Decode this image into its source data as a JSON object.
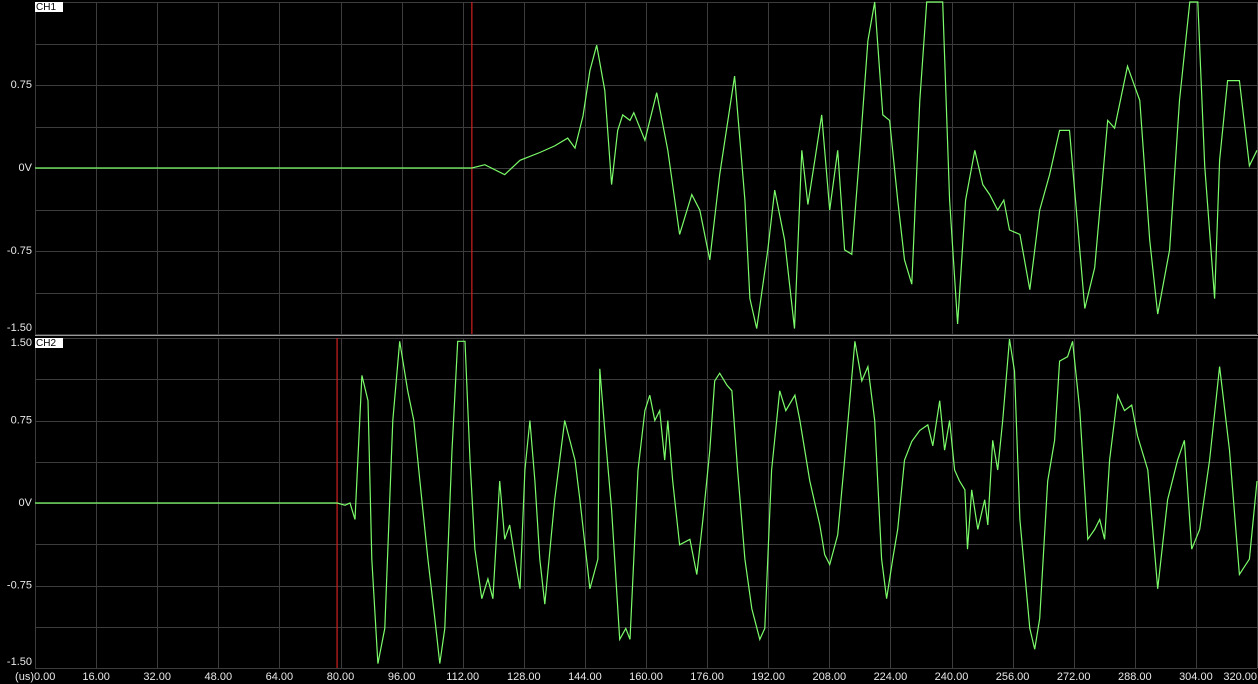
{
  "chart_data": [
    {
      "type": "line",
      "title": "CH1",
      "color": "#7CFC6A",
      "cursor": 114.4,
      "cursor_color": "#d02020",
      "xlim": [
        0,
        320
      ],
      "ylim": [
        -1.5,
        1.5
      ],
      "yticks": [
        0.75,
        {
          "value": 0,
          "label": "0V"
        },
        -0.75,
        {
          "value": -1.5,
          "label": "-1.50"
        }
      ],
      "ygrid": [
        -1.5,
        -1.125,
        -0.75,
        -0.375,
        0,
        0.375,
        0.75,
        1.125,
        1.5
      ],
      "x": [
        0,
        114.4,
        117.8,
        123.0,
        127.0,
        132.2,
        136.1,
        139.5,
        141.4,
        143.5,
        145.3,
        147.1,
        149.2,
        151.0,
        152.6,
        153.9,
        155.8,
        156.8,
        159.7,
        162.8,
        165.7,
        168.8,
        172.0,
        174.1,
        176.7,
        179.3,
        183.2,
        185.9,
        187.2,
        189.0,
        191.9,
        193.7,
        196.3,
        198.9,
        200.8,
        202.4,
        204.2,
        206.0,
        208.1,
        210.2,
        212.0,
        213.9,
        216.0,
        218.1,
        219.9,
        222.0,
        223.8,
        225.9,
        227.7,
        229.6,
        231.7,
        233.5,
        237.7,
        239.5,
        241.6,
        243.7,
        246.1,
        248.2,
        250.0,
        252.1,
        253.7,
        255.2,
        257.9,
        260.5,
        263.1,
        265.7,
        268.3,
        270.9,
        274.9,
        277.5,
        280.9,
        282.7,
        286.1,
        289.3,
        291.9,
        294.0,
        297.1,
        299.7,
        302.4,
        304.5,
        306.3,
        308.9,
        310.2,
        312.3,
        315.4,
        318.0,
        320.0
      ],
      "values": [
        0,
        0,
        0.03,
        -0.06,
        0.07,
        0.14,
        0.2,
        0.27,
        0.18,
        0.47,
        0.88,
        1.11,
        0.7,
        -0.15,
        0.34,
        0.48,
        0.43,
        0.5,
        0.25,
        0.68,
        0.16,
        -0.6,
        -0.24,
        -0.38,
        -0.83,
        -0.06,
        0.83,
        -0.29,
        -1.18,
        -1.45,
        -0.74,
        -0.2,
        -0.65,
        -1.45,
        0.16,
        -0.33,
        0.07,
        0.48,
        -0.38,
        0.16,
        -0.74,
        -0.78,
        0.16,
        1.15,
        1.5,
        0.48,
        0.43,
        -0.29,
        -0.83,
        -1.05,
        0.61,
        1.5,
        1.5,
        -0.29,
        -1.41,
        -0.29,
        0.16,
        -0.15,
        -0.24,
        -0.38,
        -0.29,
        -0.56,
        -0.6,
        -1.1,
        -0.38,
        -0.06,
        0.34,
        0.34,
        -1.27,
        -0.9,
        0.43,
        0.36,
        0.92,
        0.61,
        -0.65,
        -1.32,
        -0.74,
        0.61,
        1.5,
        1.5,
        0.02,
        -1.18,
        0.07,
        0.79,
        0.79,
        0.02,
        0.16
      ]
    },
    {
      "type": "line",
      "title": "CH2",
      "color": "#7CFC6A",
      "cursor": 79.1,
      "cursor_color": "#d02020",
      "xlim": [
        0,
        320
      ],
      "ylim": [
        -1.5,
        1.5
      ],
      "x_label": "(us)",
      "xticks": [
        {
          "value": 0,
          "label": "0.00"
        },
        {
          "value": 16,
          "label": "16.00"
        },
        {
          "value": 32,
          "label": "32.00"
        },
        {
          "value": 48,
          "label": "48.00"
        },
        {
          "value": 64,
          "label": "64.00"
        },
        {
          "value": 80,
          "label": "80.00"
        },
        {
          "value": 96,
          "label": "96.00"
        },
        {
          "value": 112,
          "label": "112.00"
        },
        {
          "value": 128,
          "label": "128.00"
        },
        {
          "value": 144,
          "label": "144.00"
        },
        {
          "value": 160,
          "label": "160.00"
        },
        {
          "value": 176,
          "label": "176.00"
        },
        {
          "value": 192,
          "label": "192.00"
        },
        {
          "value": 208,
          "label": "208.00"
        },
        {
          "value": 224,
          "label": "224.00"
        },
        {
          "value": 240,
          "label": "240.00"
        },
        {
          "value": 256,
          "label": "256.00"
        },
        {
          "value": 272,
          "label": "272.00"
        },
        {
          "value": 288,
          "label": "288.00"
        },
        {
          "value": 304,
          "label": "304.00"
        },
        {
          "value": 320,
          "label": "320.00"
        }
      ],
      "yticks": [
        {
          "value": 1.5,
          "label": "1.50"
        },
        0.75,
        {
          "value": 0,
          "label": "0V"
        },
        -0.75,
        {
          "value": -1.5,
          "label": "-1.50"
        }
      ],
      "ygrid": [
        -1.5,
        -1.125,
        -0.75,
        -0.375,
        0,
        0.375,
        0.75,
        1.125,
        1.5
      ],
      "x": [
        0,
        79.1,
        81.2,
        82.5,
        83.8,
        85.6,
        87.2,
        88.2,
        89.8,
        91.6,
        93.7,
        95.5,
        97.6,
        99.2,
        100.8,
        102.9,
        104.7,
        106.0,
        107.3,
        109.2,
        110.7,
        112.6,
        113.9,
        115.2,
        117.0,
        118.6,
        119.9,
        121.7,
        123.0,
        124.3,
        125.7,
        127.0,
        128.3,
        129.6,
        130.9,
        132.2,
        133.5,
        136.1,
        138.7,
        141.4,
        142.7,
        145.3,
        147.4,
        147.9,
        149.2,
        151.0,
        153.1,
        154.7,
        155.8,
        157.9,
        159.7,
        161.0,
        162.3,
        163.6,
        164.9,
        165.7,
        167.0,
        168.8,
        171.5,
        173.3,
        174.9,
        176.7,
        178.0,
        179.3,
        181.2,
        182.5,
        184.0,
        185.9,
        187.7,
        189.8,
        191.1,
        192.9,
        195.0,
        196.6,
        199.0,
        200.3,
        202.9,
        205.5,
        206.8,
        208.1,
        210.2,
        212.0,
        214.7,
        216.5,
        218.1,
        219.9,
        221.7,
        223.0,
        224.6,
        225.9,
        227.7,
        229.6,
        231.7,
        233.8,
        235.1,
        236.9,
        238.2,
        239.5,
        240.8,
        242.1,
        243.5,
        244.2,
        245.3,
        246.9,
        248.7,
        249.5,
        250.8,
        252.1,
        253.4,
        255.2,
        256.5,
        257.9,
        260.5,
        261.8,
        263.1,
        265.2,
        267.0,
        268.3,
        270.4,
        271.7,
        273.6,
        275.7,
        277.5,
        278.8,
        280.1,
        281.4,
        283.5,
        285.3,
        287.2,
        288.7,
        291.4,
        294.0,
        296.6,
        299.2,
        301.0,
        302.9,
        305.0,
        307.6,
        310.2,
        312.8,
        315.4,
        318.0,
        320.0
      ],
      "values": [
        0,
        0,
        -0.02,
        0,
        -0.15,
        1.16,
        0.93,
        -0.51,
        -1.46,
        -1.14,
        0.75,
        1.47,
        1.02,
        0.75,
        0.2,
        -0.51,
        -1.05,
        -1.46,
        -1.14,
        0.48,
        1.47,
        1.47,
        0.39,
        -0.42,
        -0.87,
        -0.69,
        -0.87,
        0.2,
        -0.33,
        -0.2,
        -0.51,
        -0.78,
        0.3,
        0.75,
        0.2,
        -0.51,
        -0.92,
        0.03,
        0.75,
        0.39,
        0.03,
        -0.78,
        -0.51,
        1.22,
        0.66,
        -0.06,
        -1.24,
        -1.14,
        -1.24,
        0.3,
        0.84,
        0.98,
        0.75,
        0.84,
        0.39,
        0.75,
        0.2,
        -0.38,
        -0.33,
        -0.65,
        -0.15,
        0.48,
        1.11,
        1.18,
        1.07,
        1.02,
        0.3,
        -0.51,
        -0.96,
        -1.24,
        -1.14,
        0.3,
        1.02,
        0.84,
        0.98,
        0.75,
        0.2,
        -0.2,
        -0.47,
        -0.56,
        -0.29,
        0.39,
        1.47,
        1.11,
        1.24,
        0.75,
        -0.51,
        -0.87,
        -0.51,
        -0.24,
        0.39,
        0.56,
        0.66,
        0.71,
        0.52,
        0.93,
        0.48,
        0.75,
        0.3,
        0.2,
        0.12,
        -0.42,
        0.12,
        -0.24,
        0.03,
        -0.2,
        0.57,
        0.3,
        0.75,
        1.49,
        1.2,
        -0.15,
        -1.14,
        -1.33,
        -1.05,
        0.2,
        0.57,
        1.29,
        1.33,
        1.47,
        0.84,
        -0.33,
        -0.24,
        -0.15,
        -0.33,
        0.39,
        0.98,
        0.84,
        0.89,
        0.61,
        0.3,
        -0.78,
        0.03,
        0.39,
        0.57,
        -0.42,
        -0.24,
        0.39,
        1.24,
        0.48,
        -0.65,
        -0.51,
        0.2
      ]
    }
  ]
}
